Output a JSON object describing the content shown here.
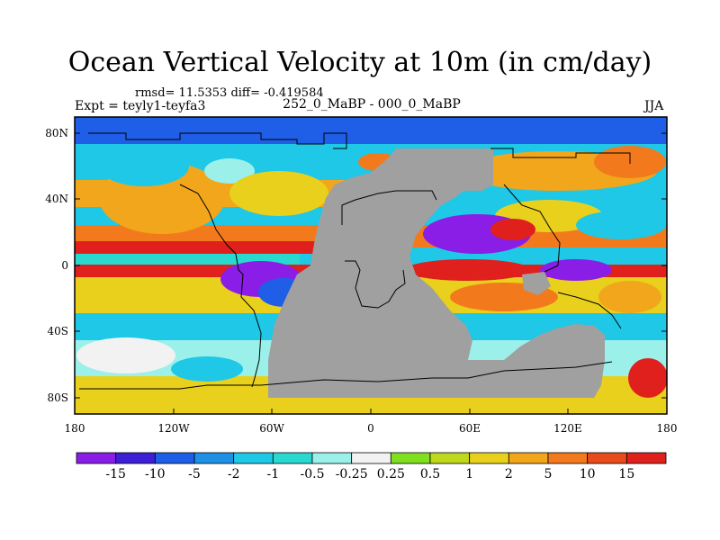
{
  "title": "Ocean Vertical Velocity at 10m (in cm/day)",
  "stats": "rmsd= 11.5353 diff= -0.419584",
  "experiment": "Expt = teyly1-teyfa3",
  "subtitle": "252_0_MaBP - 000_0_MaBP",
  "season": "JJA",
  "x_tick_labels": [
    "180",
    "120W",
    "60W",
    "0",
    "60E",
    "120E",
    "180"
  ],
  "y_tick_labels": [
    "80N",
    "40N",
    "0",
    "40S",
    "80S"
  ],
  "colorbar": {
    "labels": [
      "-15",
      "-10",
      "-5",
      "-2",
      "-1",
      "-0.5",
      "-0.25",
      "0.25",
      "0.5",
      "1",
      "2",
      "5",
      "10",
      "15"
    ],
    "colors": [
      "#8a1ee6",
      "#3d1fd6",
      "#1f5ee6",
      "#1e90e6",
      "#1ec8e6",
      "#29d9d0",
      "#9cf0ea",
      "#f2f2f2",
      "#80e020",
      "#c0d81c",
      "#e8d01c",
      "#f2a61c",
      "#f27a1c",
      "#e84a1c",
      "#e0201c"
    ]
  },
  "land_color": "#a0a0a0"
}
